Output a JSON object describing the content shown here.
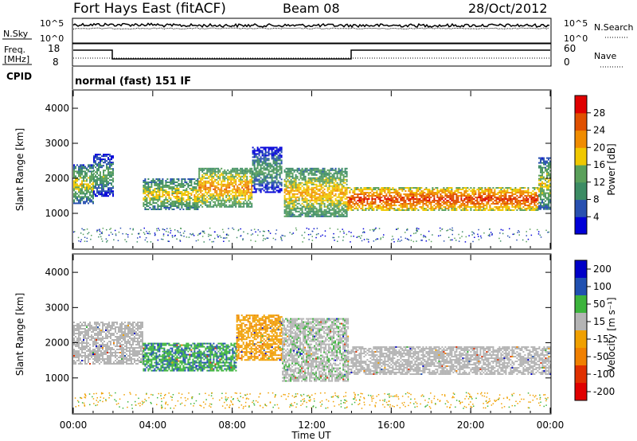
{
  "header": {
    "station": "Fort Hays East (fitACF)",
    "beam": "Beam 08",
    "date": "28/Oct/2012"
  },
  "top_panels": {
    "nsky": {
      "label": "N.Sky",
      "ticks": [
        "10^5",
        "10^0"
      ],
      "right_label": "N.Search",
      "right_ticks": [
        "10^5",
        "10^0"
      ]
    },
    "freq": {
      "label_line1": "Freq.",
      "label_line2": "[MHz]",
      "ticks": [
        "18",
        "8"
      ],
      "right_label": "Nave",
      "right_ticks": [
        "60",
        "0"
      ]
    },
    "cpid": {
      "label": "CPID",
      "value": "normal (fast) 151 IF"
    }
  },
  "colors": {
    "power": [
      "#0000d8",
      "#2850b0",
      "#3c8c64",
      "#5aa05a",
      "#f0c800",
      "#f08c00",
      "#e05000",
      "#e00000"
    ],
    "velocity": [
      "#0000c8",
      "#2050b0",
      "#3cb43c",
      "#b4b4b4",
      "#f0a000",
      "#f08000",
      "#e03000",
      "#e00000"
    ],
    "scatter_gray": "#b9b9b5"
  },
  "chart_data": [
    {
      "type": "heatmap",
      "title": "",
      "xlabel": "Time UT",
      "ylabel": "Slant Range [km]",
      "x_ticks": [
        "00:00",
        "04:00",
        "08:00",
        "12:00",
        "16:00",
        "20:00",
        "00:00"
      ],
      "xlim_hours": [
        0,
        24
      ],
      "y_ticks": [
        "1000",
        "2000",
        "3000",
        "4000"
      ],
      "ylim": [
        0,
        4500
      ],
      "colorbar": {
        "label": "Power [dB]",
        "ticks": [
          "28",
          "24",
          "20",
          "16",
          "12",
          "8",
          "4"
        ],
        "range": [
          0,
          32
        ]
      },
      "regions": [
        {
          "t0": 0.0,
          "t1": 1.0,
          "r0": 1300,
          "r1": 2400,
          "level": 14
        },
        {
          "t0": 1.0,
          "t1": 2.0,
          "r0": 1500,
          "r1": 2700,
          "level": 10
        },
        {
          "t0": 3.5,
          "t1": 6.3,
          "r0": 1100,
          "r1": 2000,
          "level": 15
        },
        {
          "t0": 6.3,
          "t1": 9.0,
          "r0": 1200,
          "r1": 2300,
          "level": 19
        },
        {
          "t0": 9.0,
          "t1": 10.5,
          "r0": 1600,
          "r1": 2900,
          "level": 9
        },
        {
          "t0": 10.6,
          "t1": 13.8,
          "r0": 900,
          "r1": 2300,
          "level": 17
        },
        {
          "t0": 13.8,
          "t1": 23.4,
          "r0": 1100,
          "r1": 1750,
          "level": 24
        },
        {
          "t0": 23.4,
          "t1": 24.0,
          "r0": 1100,
          "r1": 2600,
          "level": 14
        }
      ]
    },
    {
      "type": "heatmap",
      "title": "",
      "xlabel": "Time UT",
      "ylabel": "Slant Range [km]",
      "x_ticks": [
        "00:00",
        "04:00",
        "08:00",
        "12:00",
        "16:00",
        "20:00",
        "00:00"
      ],
      "xlim_hours": [
        0,
        24
      ],
      "y_ticks": [
        "1000",
        "2000",
        "3000",
        "4000"
      ],
      "ylim": [
        0,
        4500
      ],
      "colorbar": {
        "label": "Velocity [m s⁻¹]",
        "ticks": [
          "200",
          "100",
          "50",
          "15",
          "-15",
          "-50",
          "-100",
          "-200"
        ],
        "range": [
          -250,
          250
        ]
      },
      "regions": [
        {
          "t0": 0.0,
          "t1": 3.5,
          "r0": 1400,
          "r1": 2600,
          "velocity": 0
        },
        {
          "t0": 3.5,
          "t1": 8.2,
          "r0": 1200,
          "r1": 2000,
          "velocity": 45
        },
        {
          "t0": 8.2,
          "t1": 10.5,
          "r0": 1500,
          "r1": 2800,
          "velocity": -40
        },
        {
          "t0": 10.5,
          "t1": 13.8,
          "r0": 900,
          "r1": 2700,
          "velocity": 5
        },
        {
          "t0": 13.8,
          "t1": 24.0,
          "r0": 1100,
          "r1": 1900,
          "velocity": 0
        }
      ]
    }
  ]
}
